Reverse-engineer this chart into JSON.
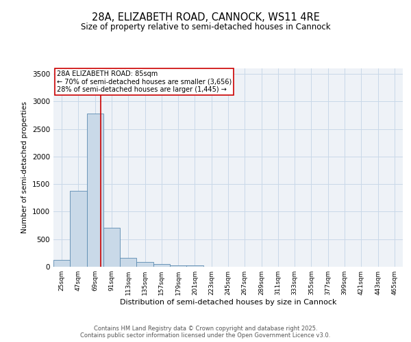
{
  "title_line1": "28A, ELIZABETH ROAD, CANNOCK, WS11 4RE",
  "title_line2": "Size of property relative to semi-detached houses in Cannock",
  "xlabel": "Distribution of semi-detached houses by size in Cannock",
  "ylabel": "Number of semi-detached properties",
  "bins": [
    "25sqm",
    "47sqm",
    "69sqm",
    "91sqm",
    "113sqm",
    "135sqm",
    "157sqm",
    "179sqm",
    "201sqm",
    "223sqm",
    "245sqm",
    "267sqm",
    "289sqm",
    "311sqm",
    "333sqm",
    "355sqm",
    "377sqm",
    "399sqm",
    "421sqm",
    "443sqm",
    "465sqm"
  ],
  "values": [
    125,
    1375,
    2775,
    710,
    160,
    90,
    50,
    30,
    25,
    0,
    0,
    0,
    0,
    0,
    0,
    0,
    0,
    0,
    0,
    0,
    0
  ],
  "bar_color": "#c9d9e8",
  "bar_edge_color": "#5a8ab0",
  "annotation_title": "28A ELIZABETH ROAD: 85sqm",
  "annotation_line2": "← 70% of semi-detached houses are smaller (3,656)",
  "annotation_line3": "28% of semi-detached houses are larger (1,445) →",
  "red_line_color": "#cc0000",
  "annotation_box_color": "#cc0000",
  "grid_color": "#c8d8e8",
  "background_color": "#eef2f7",
  "ylim": [
    0,
    3600
  ],
  "yticks": [
    0,
    500,
    1000,
    1500,
    2000,
    2500,
    3000,
    3500
  ],
  "footer_line1": "Contains HM Land Registry data © Crown copyright and database right 2025.",
  "footer_line2": "Contains public sector information licensed under the Open Government Licence v3.0.",
  "red_line_x": 2.36
}
